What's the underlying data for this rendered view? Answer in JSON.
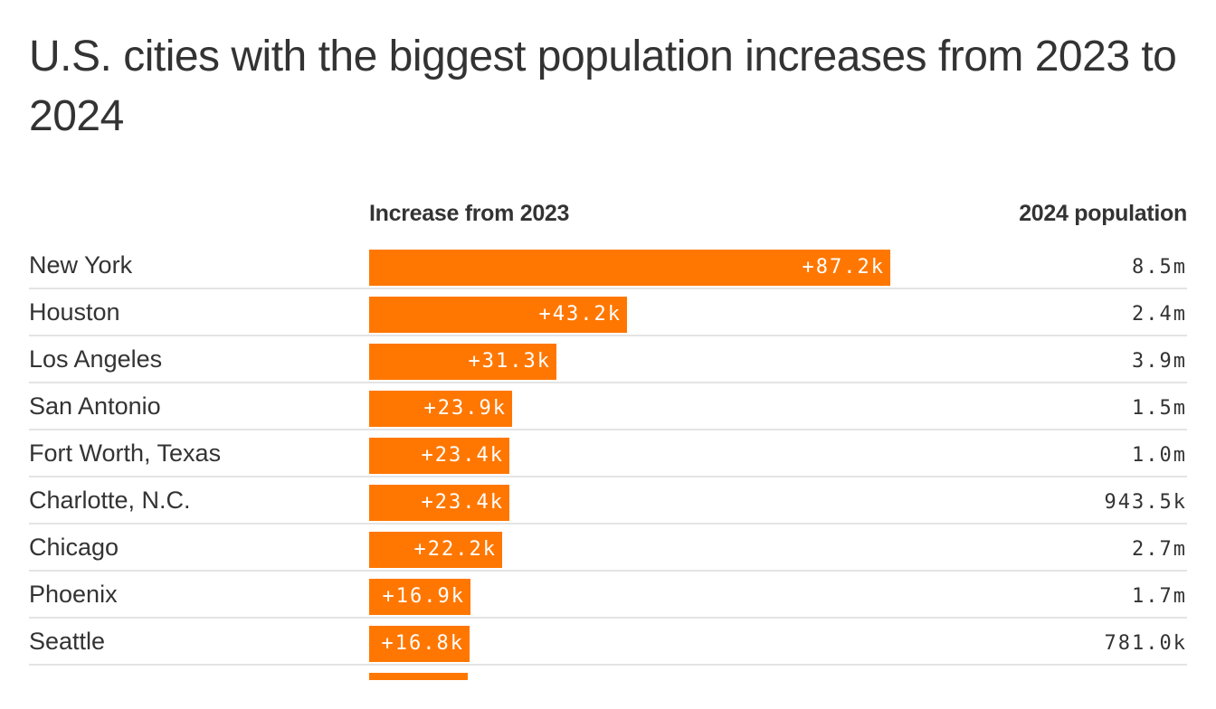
{
  "chart_data": {
    "type": "bar",
    "orientation": "horizontal",
    "title": "U.S. cities with the biggest population increases from 2023 to 2024",
    "column_headers": {
      "increase": "Increase from 2023",
      "population": "2024 population"
    },
    "xlim": [
      0,
      87.2
    ],
    "bar_color": "#ff7700",
    "rows": [
      {
        "city": "New York",
        "increase": 87.2,
        "increase_label": "+87.2k",
        "population": "8.5m"
      },
      {
        "city": "Houston",
        "increase": 43.2,
        "increase_label": "+43.2k",
        "population": "2.4m"
      },
      {
        "city": "Los Angeles",
        "increase": 31.3,
        "increase_label": "+31.3k",
        "population": "3.9m"
      },
      {
        "city": "San Antonio",
        "increase": 23.9,
        "increase_label": "+23.9k",
        "population": "1.5m"
      },
      {
        "city": "Fort Worth, Texas",
        "increase": 23.4,
        "increase_label": "+23.4k",
        "population": "1.0m"
      },
      {
        "city": "Charlotte, N.C.",
        "increase": 23.4,
        "increase_label": "+23.4k",
        "population": "943.5k"
      },
      {
        "city": "Chicago",
        "increase": 22.2,
        "increase_label": "+22.2k",
        "population": "2.7m"
      },
      {
        "city": "Phoenix",
        "increase": 16.9,
        "increase_label": "+16.9k",
        "population": "1.7m"
      },
      {
        "city": "Seattle",
        "increase": 16.8,
        "increase_label": "+16.8k",
        "population": "781.0k"
      },
      {
        "city": "",
        "increase": 16.5,
        "increase_label": "",
        "population": ""
      }
    ]
  }
}
